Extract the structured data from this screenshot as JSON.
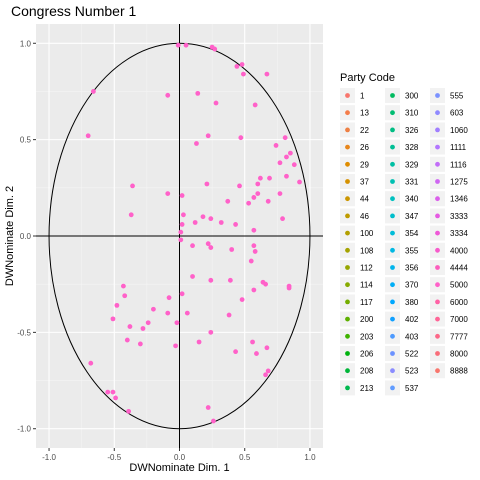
{
  "chart_data": {
    "type": "scatter",
    "title": "Congress Number 1",
    "xlabel": "DWNominate Dim. 1",
    "ylabel": "DWNominate Dim. 2",
    "xlim": [
      -1.1,
      1.1
    ],
    "ylim": [
      -1.1,
      1.1
    ],
    "xticks": [
      -1.0,
      -0.5,
      0.0,
      0.5,
      1.0
    ],
    "yticks": [
      -1.0,
      -0.5,
      0.0,
      0.5,
      1.0
    ],
    "xtick_labels": [
      "-1.0",
      "-0.5",
      "0.0",
      "0.5",
      "1.0"
    ],
    "ytick_labels": [
      "-1.0",
      "-0.5",
      "0.0",
      "0.5",
      "1.0"
    ],
    "grid": true,
    "reference_lines": {
      "x": 0,
      "y": 0
    },
    "unit_circle": true,
    "point_color": "#FF61C9",
    "legend": {
      "title": "Party Code",
      "placement": "right",
      "entries": [
        {
          "label": "1",
          "color": "#F8766D"
        },
        {
          "label": "13",
          "color": "#F47D4A"
        },
        {
          "label": "22",
          "color": "#EE8044"
        },
        {
          "label": "26",
          "color": "#E7861B"
        },
        {
          "label": "29",
          "color": "#DF8C00"
        },
        {
          "label": "37",
          "color": "#D59100"
        },
        {
          "label": "44",
          "color": "#CB9600"
        },
        {
          "label": "46",
          "color": "#BF9B00"
        },
        {
          "label": "100",
          "color": "#B29F00"
        },
        {
          "label": "108",
          "color": "#A5A300"
        },
        {
          "label": "112",
          "color": "#96A600"
        },
        {
          "label": "114",
          "color": "#86AA00"
        },
        {
          "label": "117",
          "color": "#74AD00"
        },
        {
          "label": "200",
          "color": "#5EB000"
        },
        {
          "label": "203",
          "color": "#3FB200"
        },
        {
          "label": "206",
          "color": "#00B30F"
        },
        {
          "label": "208",
          "color": "#00B539"
        },
        {
          "label": "213",
          "color": "#00B84E"
        },
        {
          "label": "300",
          "color": "#00BA5F"
        },
        {
          "label": "310",
          "color": "#00BC72"
        },
        {
          "label": "326",
          "color": "#00BD84"
        },
        {
          "label": "328",
          "color": "#00BE94"
        },
        {
          "label": "329",
          "color": "#00BFA3"
        },
        {
          "label": "331",
          "color": "#00C0B2"
        },
        {
          "label": "340",
          "color": "#00C0BF"
        },
        {
          "label": "347",
          "color": "#00BECC"
        },
        {
          "label": "354",
          "color": "#00BCD8"
        },
        {
          "label": "355",
          "color": "#00B8E3"
        },
        {
          "label": "356",
          "color": "#00B4EC"
        },
        {
          "label": "370",
          "color": "#00AEF6"
        },
        {
          "label": "380",
          "color": "#00A8FF"
        },
        {
          "label": "402",
          "color": "#11A0FF"
        },
        {
          "label": "403",
          "color": "#4D9AFF"
        },
        {
          "label": "522",
          "color": "#6B92FF"
        },
        {
          "label": "523",
          "color": "#8A8CFF"
        },
        {
          "label": "537",
          "color": "#619CFF"
        },
        {
          "label": "555",
          "color": "#7B92FF"
        },
        {
          "label": "603",
          "color": "#8F89FF"
        },
        {
          "label": "1060",
          "color": "#A17FFF"
        },
        {
          "label": "1111",
          "color": "#B276FF"
        },
        {
          "label": "1116",
          "color": "#C26DF8"
        },
        {
          "label": "1275",
          "color": "#CF66F2"
        },
        {
          "label": "1346",
          "color": "#DB60EB"
        },
        {
          "label": "3333",
          "color": "#E55AE2"
        },
        {
          "label": "3334",
          "color": "#EF58D7"
        },
        {
          "label": "4000",
          "color": "#F75ACB"
        },
        {
          "label": "4444",
          "color": "#FC5CBD"
        },
        {
          "label": "5000",
          "color": "#FF61C9"
        },
        {
          "label": "6000",
          "color": "#FF62A6"
        },
        {
          "label": "7000",
          "color": "#FF6597"
        },
        {
          "label": "7777",
          "color": "#FC6888"
        },
        {
          "label": "8000",
          "color": "#F96D79"
        },
        {
          "label": "8888",
          "color": "#F8766D"
        }
      ]
    },
    "series": [
      {
        "x": [
          -0.01,
          0.05,
          0.25,
          0.27,
          0.44,
          0.48,
          0.49,
          0.67,
          -0.66,
          0.14,
          0.28,
          -0.09,
          0.58,
          -0.7,
          0.47,
          0.81,
          0.22,
          0.13,
          0.74,
          0.85,
          0.82,
          0.77,
          0.88,
          0.62,
          0.69,
          0.82,
          0.92,
          0.6,
          0.21,
          0.46,
          0.77,
          0.6,
          0.02,
          0.37,
          0.57,
          0.68,
          -0.36,
          -0.09,
          0.53,
          -0.37,
          0.03,
          0.18,
          0.24,
          0.02,
          0.79,
          0.32,
          0.43,
          0.12,
          0.57,
          0.01,
          0.01,
          0.1,
          0.22,
          0.24,
          0.58,
          0.57,
          0.4,
          0.55,
          0.24,
          0.1,
          0.64,
          0.84,
          0.66,
          0.84,
          0.39,
          0.57,
          0.02,
          -0.43,
          -0.08,
          -0.42,
          0.48,
          -0.48,
          -0.09,
          0.06,
          -0.51,
          0.38,
          -0.2,
          -0.02,
          -0.24,
          -0.28,
          -0.38,
          0.24,
          -0.4,
          0.15,
          -0.3,
          -0.03,
          0.56,
          0.59,
          0.67,
          0.43,
          -0.68,
          0.68,
          0.66,
          -0.51,
          -0.55,
          -0.49,
          -0.39,
          0.22,
          0.26
        ],
        "y": [
          0.99,
          0.99,
          0.98,
          0.97,
          0.88,
          0.89,
          0.84,
          0.84,
          0.75,
          0.74,
          0.69,
          0.73,
          0.68,
          0.52,
          0.51,
          0.51,
          0.52,
          0.48,
          0.47,
          0.43,
          0.41,
          0.38,
          0.37,
          0.3,
          0.3,
          0.31,
          0.28,
          0.27,
          0.27,
          0.26,
          0.22,
          0.22,
          0.21,
          0.18,
          0.2,
          0.18,
          0.26,
          0.22,
          0.17,
          0.11,
          0.11,
          0.1,
          0.09,
          0.06,
          0.09,
          0.07,
          0.06,
          0.07,
          0.03,
          0.02,
          -0.02,
          -0.05,
          -0.04,
          -0.06,
          -0.08,
          -0.05,
          -0.07,
          -0.13,
          -0.23,
          -0.21,
          -0.24,
          -0.27,
          -0.25,
          -0.26,
          -0.23,
          -0.28,
          -0.3,
          -0.26,
          -0.32,
          -0.31,
          -0.33,
          -0.36,
          -0.4,
          -0.4,
          -0.43,
          -0.41,
          -0.38,
          -0.45,
          -0.45,
          -0.48,
          -0.47,
          -0.5,
          -0.54,
          -0.55,
          -0.56,
          -0.57,
          -0.55,
          -0.61,
          -0.58,
          -0.6,
          -0.66,
          -0.7,
          -0.72,
          -0.81,
          -0.81,
          -0.84,
          -0.91,
          -0.89,
          -0.96
        ]
      }
    ]
  }
}
